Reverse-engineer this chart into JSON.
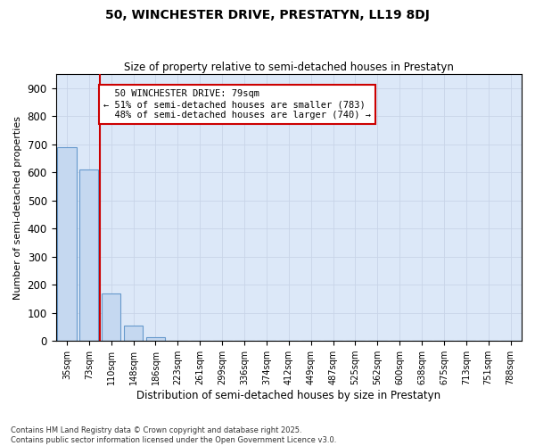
{
  "title": "50, WINCHESTER DRIVE, PRESTATYN, LL19 8DJ",
  "subtitle": "Size of property relative to semi-detached houses in Prestatyn",
  "xlabel": "Distribution of semi-detached houses by size in Prestatyn",
  "ylabel": "Number of semi-detached properties",
  "bar_labels": [
    "35sqm",
    "73sqm",
    "110sqm",
    "148sqm",
    "186sqm",
    "223sqm",
    "261sqm",
    "299sqm",
    "336sqm",
    "374sqm",
    "412sqm",
    "449sqm",
    "487sqm",
    "525sqm",
    "562sqm",
    "600sqm",
    "638sqm",
    "675sqm",
    "713sqm",
    "751sqm",
    "788sqm"
  ],
  "bar_values": [
    690,
    610,
    170,
    55,
    15,
    0,
    0,
    0,
    0,
    0,
    0,
    0,
    0,
    0,
    0,
    0,
    0,
    0,
    0,
    0,
    0
  ],
  "bar_color": "#c5d8f0",
  "bar_edge_color": "#6699cc",
  "highlight_label": "50 WINCHESTER DRIVE: 79sqm",
  "pct_smaller": "51% of semi-detached houses are smaller (783)",
  "pct_larger": "48% of semi-detached houses are larger (740)",
  "annotation_box_color": "#ffffff",
  "annotation_box_edge": "#cc0000",
  "vline_color": "#cc0000",
  "grid_color": "#c8d4e8",
  "bg_color": "#dce8f8",
  "ylim": [
    0,
    950
  ],
  "yticks": [
    0,
    100,
    200,
    300,
    400,
    500,
    600,
    700,
    800,
    900
  ],
  "footer": "Contains HM Land Registry data © Crown copyright and database right 2025.\nContains public sector information licensed under the Open Government Licence v3.0."
}
